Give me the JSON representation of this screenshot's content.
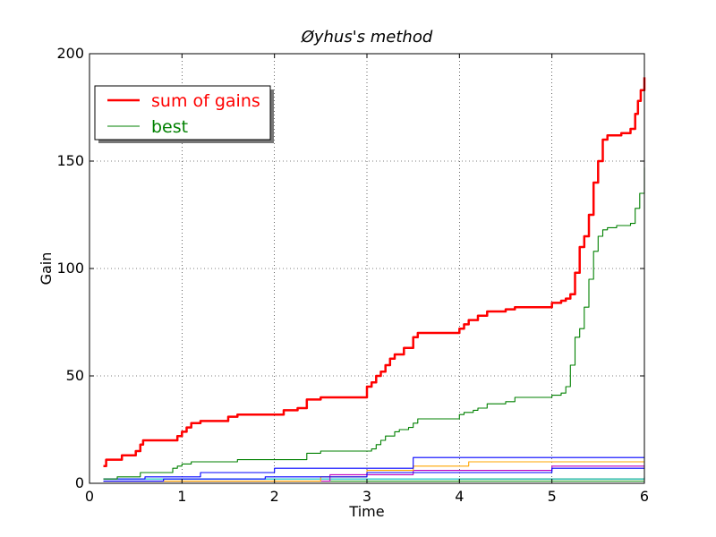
{
  "chart_data": {
    "type": "line",
    "title": "Øyhus's method",
    "xlabel": "Time",
    "ylabel": "Gain",
    "xlim": [
      0,
      6
    ],
    "ylim": [
      0,
      200
    ],
    "xticks": [
      0,
      1,
      2,
      3,
      4,
      5,
      6
    ],
    "yticks": [
      0,
      50,
      100,
      150,
      200
    ],
    "grid": true,
    "legend_position": "upper-left",
    "series": [
      {
        "name": "sum of gains",
        "color": "#ff0000",
        "in_legend": true,
        "x": [
          0.15,
          0.18,
          0.22,
          0.35,
          0.5,
          0.55,
          0.58,
          0.9,
          0.95,
          1.0,
          1.05,
          1.1,
          1.2,
          1.5,
          1.6,
          2.0,
          2.1,
          2.25,
          2.35,
          2.5,
          2.95,
          3.0,
          3.05,
          3.1,
          3.15,
          3.2,
          3.25,
          3.3,
          3.4,
          3.5,
          3.55,
          3.9,
          4.0,
          4.05,
          4.1,
          4.2,
          4.3,
          4.5,
          4.6,
          4.9,
          5.0,
          5.1,
          5.15,
          5.2,
          5.25,
          5.3,
          5.35,
          5.4,
          5.45,
          5.5,
          5.55,
          5.6,
          5.65,
          5.7,
          5.75,
          5.8,
          5.85,
          5.9,
          5.93,
          5.96,
          6.0
        ],
        "y": [
          8,
          11,
          11,
          13,
          15,
          18,
          20,
          20,
          22,
          24,
          26,
          28,
          29,
          31,
          32,
          32,
          34,
          35,
          39,
          40,
          40,
          45,
          47,
          50,
          52,
          55,
          58,
          60,
          63,
          68,
          70,
          70,
          72,
          74,
          76,
          78,
          80,
          81,
          82,
          82,
          84,
          85,
          86,
          88,
          98,
          110,
          115,
          125,
          140,
          150,
          160,
          162,
          162,
          162,
          163,
          163,
          165,
          172,
          178,
          183,
          189
        ]
      },
      {
        "name": "best",
        "color": "#008000",
        "in_legend": true,
        "x": [
          0.15,
          0.3,
          0.5,
          0.55,
          0.85,
          0.9,
          0.95,
          1.0,
          1.1,
          1.5,
          1.6,
          2.2,
          2.35,
          2.5,
          3.0,
          3.05,
          3.1,
          3.15,
          3.2,
          3.3,
          3.35,
          3.45,
          3.5,
          3.55,
          3.9,
          4.0,
          4.05,
          4.15,
          4.2,
          4.3,
          4.5,
          4.6,
          4.9,
          5.0,
          5.1,
          5.15,
          5.2,
          5.25,
          5.3,
          5.35,
          5.4,
          5.45,
          5.5,
          5.55,
          5.6,
          5.7,
          5.8,
          5.85,
          5.9,
          5.95,
          6.0
        ],
        "y": [
          2,
          3,
          3,
          5,
          5,
          7,
          8,
          9,
          10,
          10,
          11,
          11,
          14,
          15,
          15,
          16,
          18,
          20,
          22,
          24,
          25,
          26,
          28,
          30,
          30,
          32,
          33,
          34,
          35,
          37,
          38,
          40,
          40,
          41,
          42,
          45,
          55,
          68,
          72,
          82,
          95,
          108,
          115,
          118,
          119,
          120,
          120,
          121,
          128,
          135,
          147
        ]
      },
      {
        "name": "",
        "color": "#0000ff",
        "in_legend": false,
        "x": [
          0.15,
          0.6,
          1.2,
          2.0,
          2.4,
          3.5,
          6.0
        ],
        "y": [
          2,
          3,
          5,
          7,
          7,
          12,
          12
        ]
      },
      {
        "name": "",
        "color": "#0000ff",
        "in_legend": false,
        "x": [
          0.15,
          0.8,
          1.9,
          3.0,
          5.0,
          6.0
        ],
        "y": [
          1,
          2,
          3,
          5,
          7,
          7
        ]
      },
      {
        "name": "",
        "color": "#ffa500",
        "in_legend": false,
        "x": [
          0.15,
          2.5,
          3.0,
          3.5,
          4.1,
          6.0
        ],
        "y": [
          1,
          3,
          6,
          8,
          10,
          10
        ]
      },
      {
        "name": "",
        "color": "#c000c0",
        "in_legend": false,
        "x": [
          0.15,
          2.6,
          3.5,
          5.0,
          6.0
        ],
        "y": [
          1,
          4,
          6,
          8,
          8
        ]
      },
      {
        "name": "",
        "color": "#00bfbf",
        "in_legend": false,
        "x": [
          0.15,
          1.0,
          3.0,
          6.0
        ],
        "y": [
          2,
          2,
          2,
          3
        ]
      },
      {
        "name": "",
        "color": "#2ca02c",
        "in_legend": false,
        "x": [
          0.15,
          6.0
        ],
        "y": [
          1,
          1
        ]
      },
      {
        "name": "",
        "color": "#808000",
        "in_legend": false,
        "x": [
          0.15,
          4.0,
          6.0
        ],
        "y": [
          1,
          2,
          2
        ]
      }
    ]
  }
}
